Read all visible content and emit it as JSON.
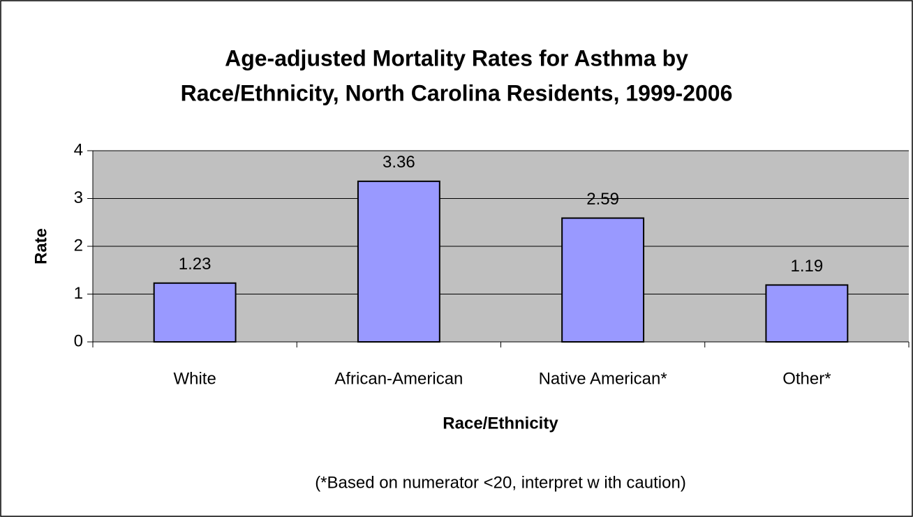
{
  "chart_data": {
    "type": "bar",
    "title": [
      "Age-adjusted Mortality Rates for Asthma by",
      "Race/Ethnicity, North Carolina Residents, 1999-2006"
    ],
    "xlabel": "Race/Ethnicity",
    "ylabel": "Rate",
    "note": "(*Based on numerator <20, interpret w ith caution)",
    "categories": [
      "White",
      "African-American",
      "Native American*",
      "Other*"
    ],
    "values": [
      1.23,
      3.36,
      2.59,
      1.19
    ],
    "color": "#9999ff",
    "ylim": [
      0,
      4
    ],
    "yticks": [
      0,
      1,
      2,
      3,
      4
    ],
    "grid": true
  }
}
